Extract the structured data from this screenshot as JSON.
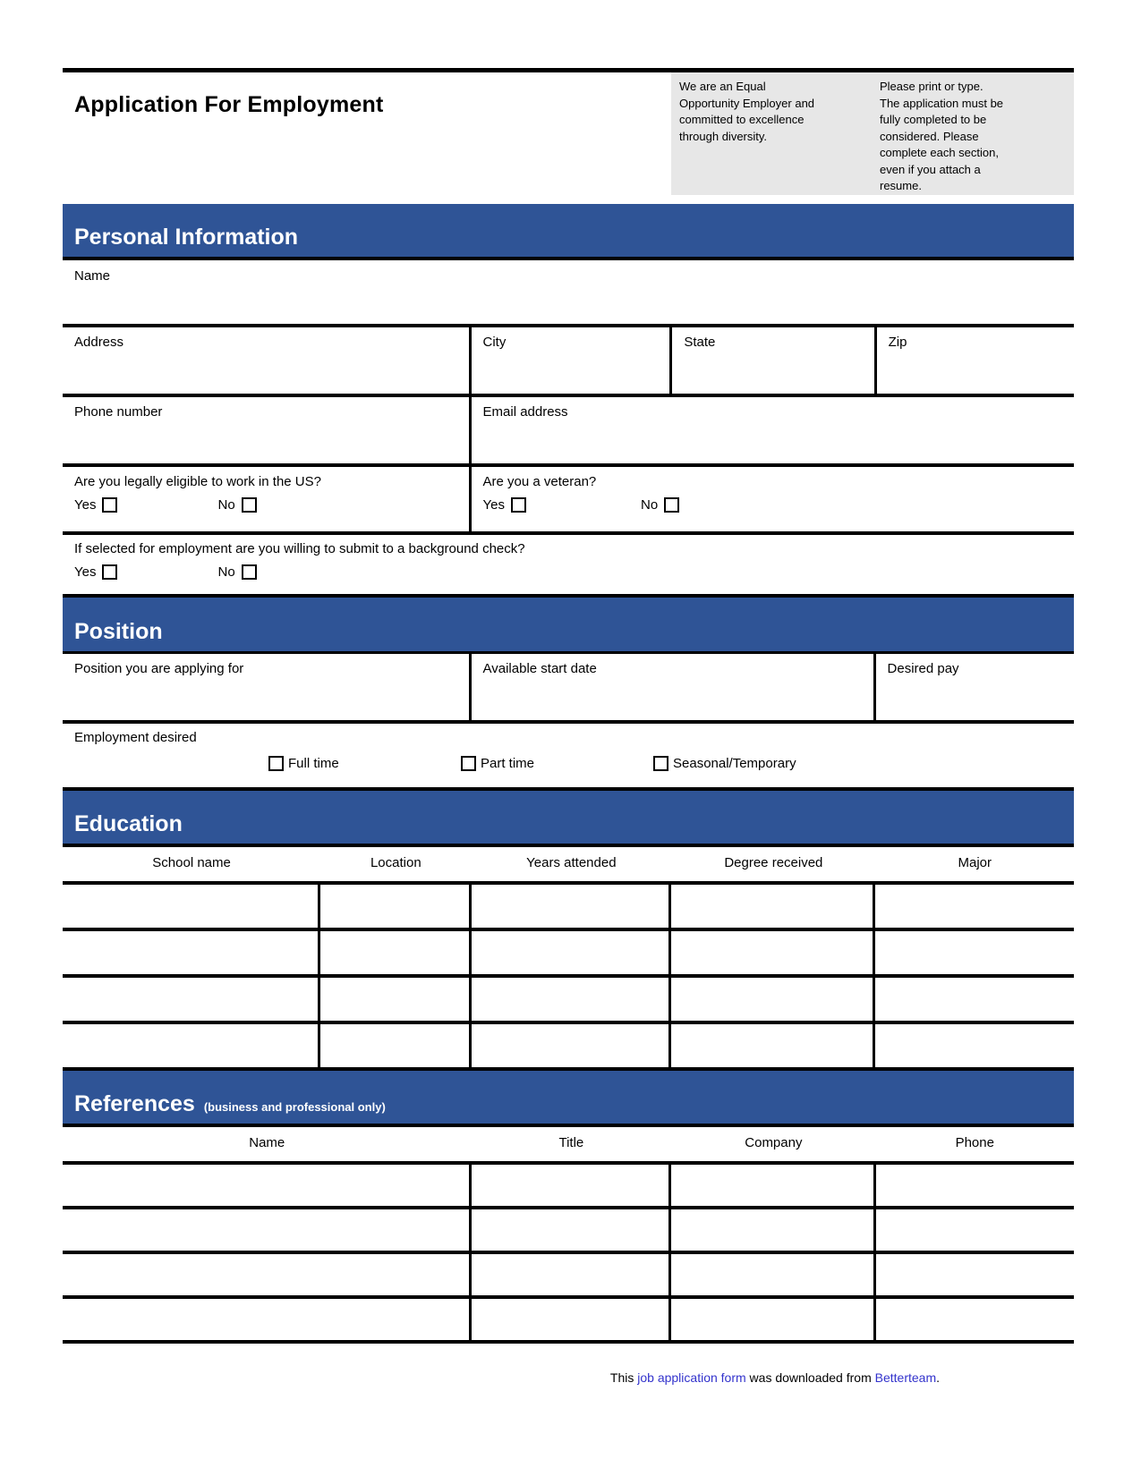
{
  "header": {
    "title": "Application For Employment",
    "note_left_lines": [
      "We are an Equal",
      "Opportunity Employer and",
      "committed to excellence",
      "through diversity."
    ],
    "note_right_lines": [
      "Please print or type.",
      "The application must be",
      "fully completed to be",
      "considered. Please",
      "complete each section,",
      "even if you attach a",
      "resume."
    ]
  },
  "labels": {
    "yes": "Yes",
    "no": "No"
  },
  "sections": {
    "personal": {
      "title": "Personal Information",
      "name_label": "Name",
      "address_label": "Address",
      "city_label": "City",
      "state_label": "State",
      "zip_label": "Zip",
      "phone_label": "Phone number",
      "email_label": "Email address",
      "eligible_question": "Are you legally eligible to work in the US?",
      "veteran_question": "Are you a veteran?",
      "background_question": "If selected for employment are you willing to submit to a background check?"
    },
    "position": {
      "title": "Position",
      "position_label": "Position you are applying for",
      "start_label": "Available start date",
      "pay_label": "Desired pay",
      "employment_label": "Employment desired",
      "options": [
        "Full time",
        "Part time",
        "Seasonal/Temporary"
      ]
    },
    "education": {
      "title": "Education",
      "columns": [
        "School name",
        "Location",
        "Years attended",
        "Degree received",
        "Major"
      ],
      "rows": 4
    },
    "references": {
      "title": "References",
      "subtitle": "(business and professional only)",
      "columns": [
        "Name",
        "Title",
        "Company",
        "Phone"
      ],
      "rows": 4
    }
  },
  "footer": {
    "prefix": "This ",
    "link1": "job application form",
    "middle": " was downloaded from ",
    "link2": "Betterteam",
    "suffix": "."
  },
  "colors": {
    "accent": "#2F5496",
    "note_bg": "#E7E7E7",
    "link": "#3333CC",
    "rule": "#000000"
  }
}
